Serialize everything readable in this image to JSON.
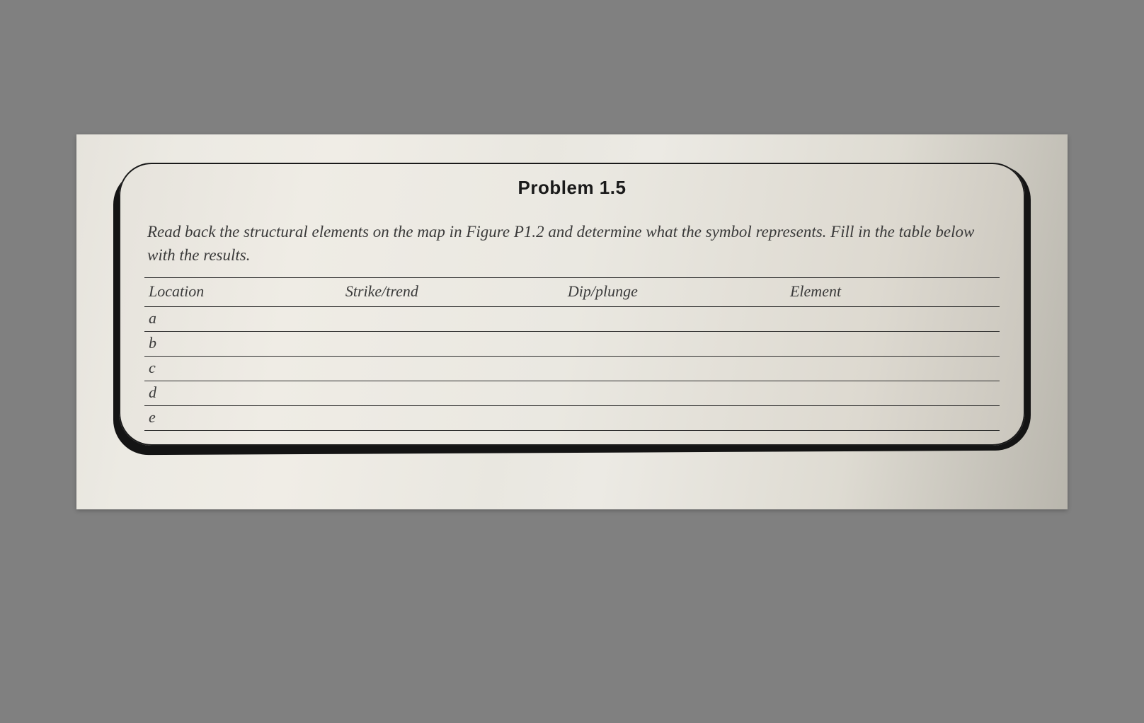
{
  "title": "Problem 1.5",
  "instructions": "Read back the structural elements on the map in Figure P1.2 and determine what the symbol represents. Fill in the table below with the results.",
  "table": {
    "columns": [
      "Location",
      "Strike/trend",
      "Dip/plunge",
      "Element"
    ],
    "rows": [
      {
        "location": "a",
        "strike": "",
        "dip": "",
        "element": ""
      },
      {
        "location": "b",
        "strike": "",
        "dip": "",
        "element": ""
      },
      {
        "location": "c",
        "strike": "",
        "dip": "",
        "element": ""
      },
      {
        "location": "d",
        "strike": "",
        "dip": "",
        "element": ""
      },
      {
        "location": "e",
        "strike": "",
        "dip": "",
        "element": ""
      }
    ]
  }
}
